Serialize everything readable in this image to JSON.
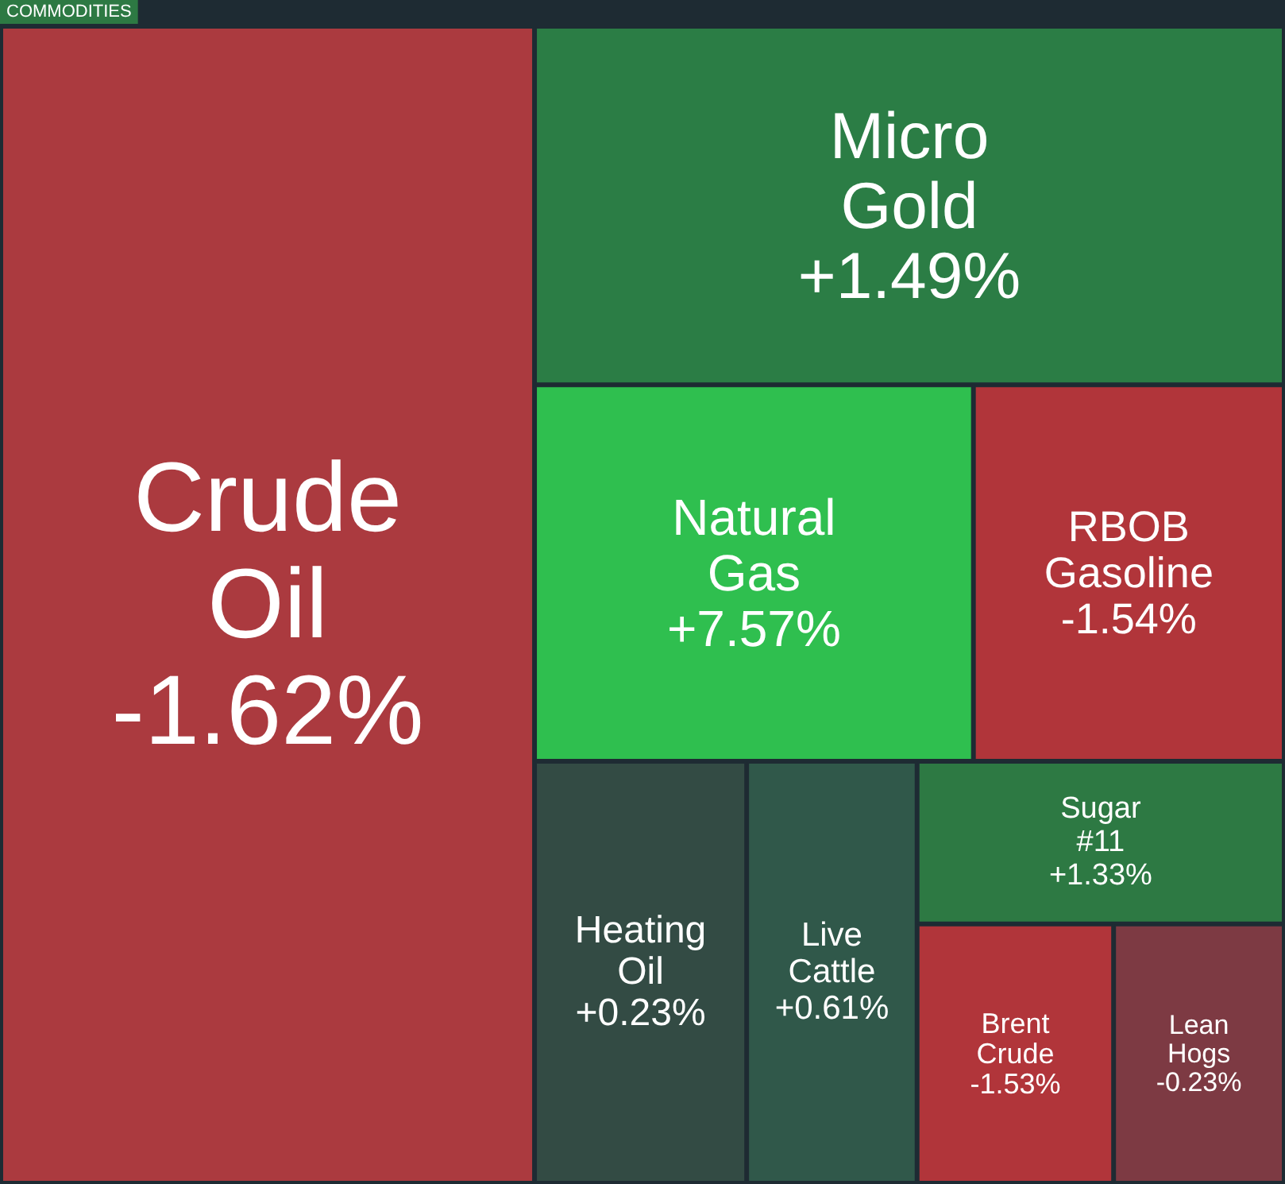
{
  "chart_data": {
    "type": "other",
    "title": "COMMODITIES",
    "categories": [
      "Crude Oil",
      "Micro Gold",
      "Natural Gas",
      "RBOB Gasoline",
      "Heating Oil",
      "Live Cattle",
      "Sugar #11",
      "Brent Crude",
      "Lean Hogs"
    ],
    "values": [
      -1.62,
      1.49,
      7.57,
      -1.54,
      0.23,
      0.61,
      1.33,
      -1.53,
      -0.23
    ],
    "value_labels": [
      "-1.62%",
      "+1.49%",
      "+7.57%",
      "-1.54%",
      "+0.23%",
      "+0.61%",
      "+1.33%",
      "-1.53%",
      "-0.23%"
    ],
    "colors": [
      "#ab3a3f",
      "#2b7d45",
      "#2fbf4f",
      "#b1353a",
      "#334b44",
      "#30584a",
      "#2d7943",
      "#b1353a",
      "#7d3a43"
    ]
  }
}
